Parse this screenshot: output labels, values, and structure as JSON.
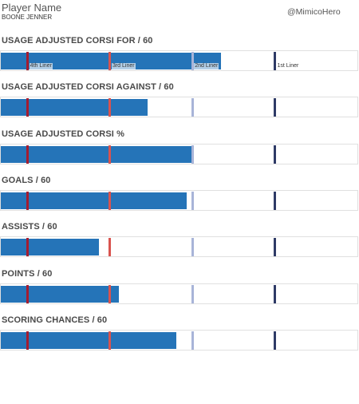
{
  "header": {
    "title": "Player Name",
    "player": "BOONE JENNER",
    "handle": "@MimicoHero"
  },
  "colors": {
    "bar": "#2574b8",
    "fourth_line": "#a51c30",
    "third_line": "#d9534f",
    "second_line": "#a8b4d8",
    "first_line": "#2e3a66"
  },
  "tiers": [
    {
      "key": "fourth",
      "label": "4th Liner"
    },
    {
      "key": "third",
      "label": "3rd Liner"
    },
    {
      "key": "second",
      "label": "2nd Liner"
    },
    {
      "key": "first",
      "label": "1st Liner"
    }
  ],
  "chart_data": {
    "type": "bar",
    "orientation": "horizontal",
    "scale": "relative position within each metric (0-1); reference lines mark line-tier thresholds",
    "metrics": [
      {
        "title": "USAGE ADJUSTED CORSI FOR / 60",
        "value": 0.615,
        "thresholds": [
          0.075,
          0.305,
          0.535,
          0.765
        ],
        "show_labels": true
      },
      {
        "title": "USAGE ADJUSTED CORSI AGAINST / 60",
        "value": 0.41,
        "thresholds": [
          0.075,
          0.305,
          0.535,
          0.765
        ],
        "show_labels": false
      },
      {
        "title": "USAGE ADJUSTED CORSI %",
        "value": 0.535,
        "thresholds": [
          0.075,
          0.305,
          0.535,
          0.765
        ],
        "show_labels": false
      },
      {
        "title": "GOALS / 60",
        "value": 0.52,
        "thresholds": [
          0.075,
          0.305,
          0.535,
          0.765
        ],
        "show_labels": false
      },
      {
        "title": "ASSISTS / 60",
        "value": 0.275,
        "thresholds": [
          0.075,
          0.305,
          0.535,
          0.765
        ],
        "show_labels": false
      },
      {
        "title": "POINTS / 60",
        "value": 0.33,
        "thresholds": [
          0.075,
          0.305,
          0.535,
          0.765
        ],
        "show_labels": false
      },
      {
        "title": "SCORING CHANCES / 60",
        "value": 0.49,
        "thresholds": [
          0.075,
          0.305,
          0.535,
          0.765
        ],
        "show_labels": false
      }
    ]
  }
}
